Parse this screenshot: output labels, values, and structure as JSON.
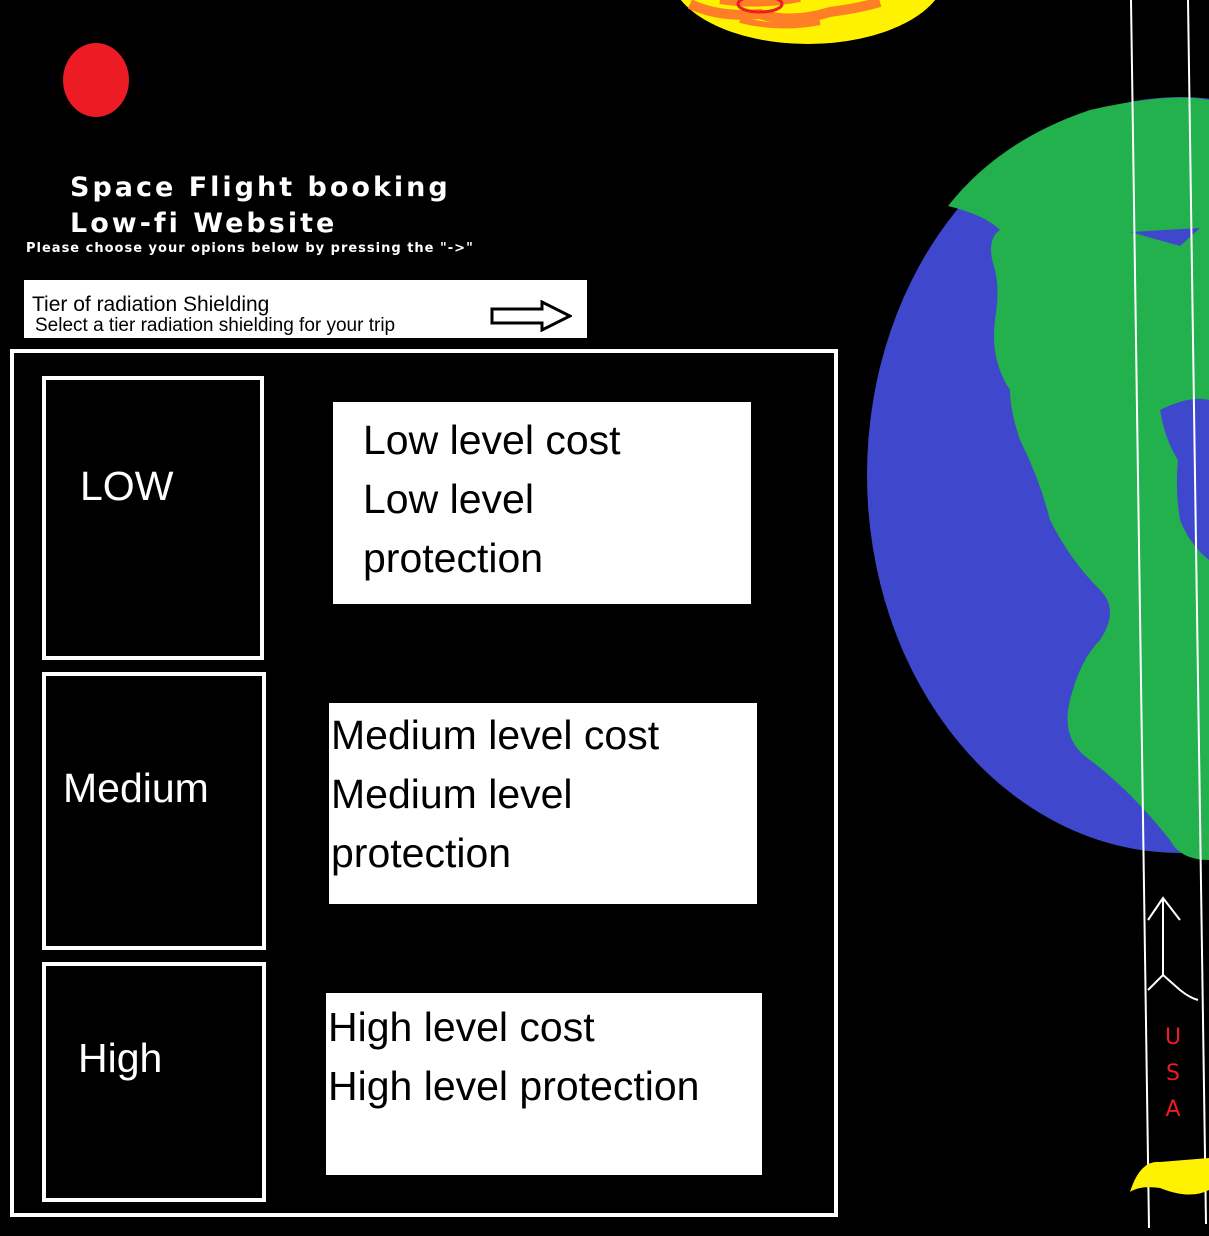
{
  "header": {
    "title_line1": "Space Flight booking",
    "title_line2": "Low-fi Website",
    "instruction": "Please choose your opions below by pressing the \"->\""
  },
  "tier_section": {
    "title": "Tier of radiation Shielding",
    "subtitle": "Select a tier radiation shielding for your trip",
    "next_arrow_icon": "right-arrow-icon"
  },
  "tiers": [
    {
      "label": "LOW",
      "desc_line1": "Low level cost",
      "desc_line2": "Low level",
      "desc_line3": "protection"
    },
    {
      "label": "Medium",
      "desc_line1": "Medium level cost",
      "desc_line2": "Medium level",
      "desc_line3": "protection"
    },
    {
      "label": "High",
      "desc_line1": "High level cost",
      "desc_line2": "High level protection"
    }
  ],
  "decorations": {
    "rocket_label": "USA",
    "colors": {
      "background": "#000000",
      "red_planet": "#ed1c24",
      "sun": "#fff200",
      "sun_flare": "#ff7f27",
      "earth_ocean": "#3f48cc",
      "earth_land": "#22b14c",
      "rocket_label": "#ed1c24",
      "rocket_flame": "#fff200"
    }
  }
}
